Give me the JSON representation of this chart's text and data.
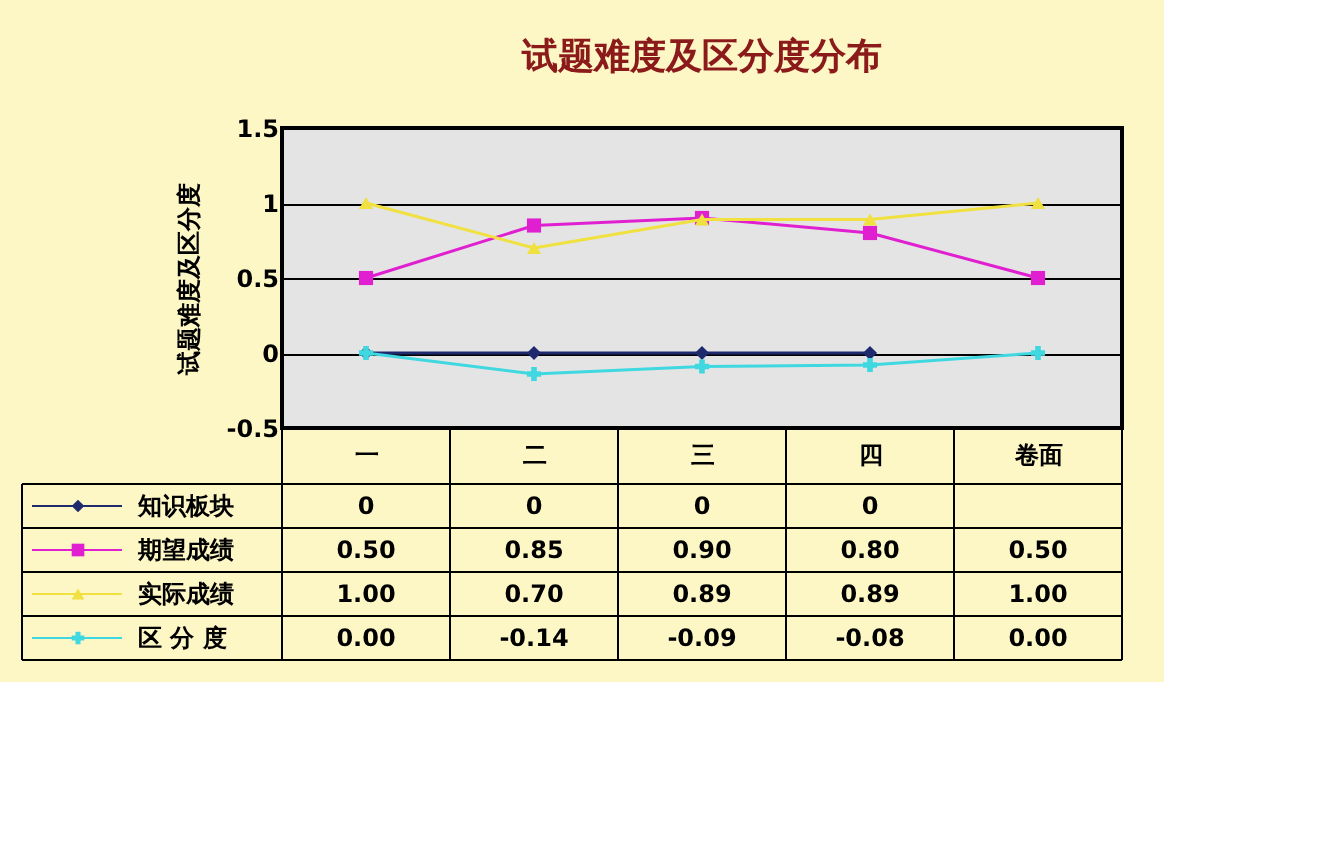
{
  "chart_data": {
    "type": "line",
    "title": "试题难度及区分度分布",
    "ylabel": "试题难度及区分度",
    "categories": [
      "一",
      "二",
      "三",
      "四",
      "卷面"
    ],
    "series": [
      {
        "name": "知识板块",
        "color": "#1f2a6e",
        "marker": "diamond",
        "values": [
          0,
          0,
          0,
          0,
          null
        ],
        "value_labels": [
          "0",
          "0",
          "0",
          "0",
          null
        ]
      },
      {
        "name": "期望成绩",
        "color": "#e020d0",
        "marker": "square",
        "values": [
          0.5,
          0.85,
          0.9,
          0.8,
          0.5
        ],
        "value_labels": [
          "0.50",
          "0.85",
          "0.90",
          "0.80",
          "0.50"
        ]
      },
      {
        "name": "实际成绩",
        "color": "#f0e040",
        "marker": "triangle",
        "values": [
          1.0,
          0.7,
          0.89,
          0.89,
          1.0
        ],
        "value_labels": [
          "1.00",
          "0.70",
          "0.89",
          "0.89",
          "1.00"
        ]
      },
      {
        "name": "区 分 度",
        "color": "#40d8e0",
        "marker": "cross",
        "values": [
          0.0,
          -0.14,
          -0.09,
          -0.08,
          0.0
        ],
        "value_labels": [
          "0.00",
          "-0.14",
          "-0.09",
          "-0.08",
          "0.00"
        ]
      }
    ],
    "ylim": [
      -0.5,
      1.5
    ],
    "yticks": [
      -0.5,
      0,
      0.5,
      1,
      1.5
    ],
    "grid": "y",
    "legend": "bottom left"
  }
}
